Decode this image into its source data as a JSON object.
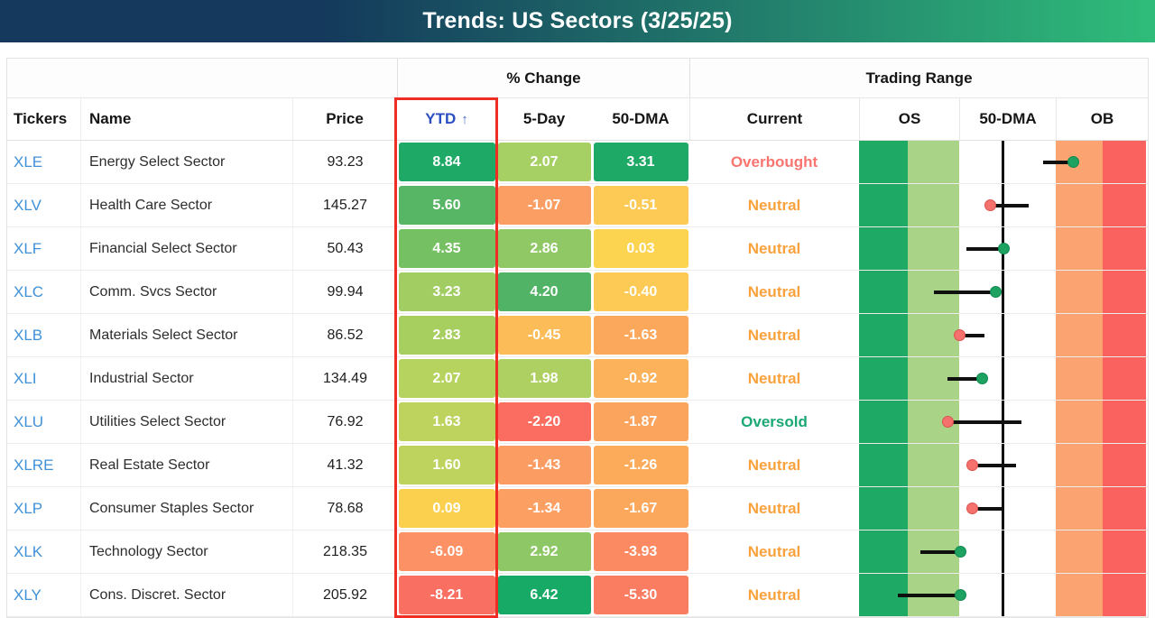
{
  "title": "Trends: US Sectors (3/25/25)",
  "groups": {
    "pct_change": "% Change",
    "trading_range": "Trading Range"
  },
  "columns": {
    "tickers": "Tickers",
    "name": "Name",
    "price": "Price",
    "ytd": "YTD",
    "sort_arrow": "↑",
    "five_day": "5-Day",
    "dma": "50-DMA",
    "current": "Current",
    "os": "OS",
    "range_dma": "50-DMA",
    "ob": "OB"
  },
  "colors": {
    "titlebar_left": "#14395c",
    "titlebar_right": "#2fbc7a",
    "ticker_blue": "#3f90d8",
    "ytd_header_blue": "#2b4fc2",
    "highlight_red": "#ee2e24",
    "midline_black": "#101010",
    "status": {
      "Overbought": "#fa7470",
      "Neutral": "#f9a23c",
      "Oversold": "#1aa874"
    },
    "bands": {
      "os_dark": "#1ea964",
      "os_light": "#a9d488",
      "mid": "#ffffff",
      "ob_orange": "#fca471",
      "ob_red": "#fa625f"
    },
    "dot": {
      "green": "#1da262",
      "green_border": "#0f8a50",
      "red": "#f5716d",
      "red_border": "#db534e"
    }
  },
  "chart_data": {
    "type": "table",
    "title": "Trends: US Sectors (3/25/25)",
    "column_groups": [
      {
        "label": "% Change",
        "spans": [
          "YTD",
          "5-Day",
          "50-DMA"
        ]
      },
      {
        "label": "Trading Range",
        "spans": [
          "Current",
          "OS",
          "50-DMA",
          "OB"
        ]
      }
    ],
    "columns": [
      "Tickers",
      "Name",
      "Price",
      "YTD",
      "5-Day",
      "50-DMA",
      "Current",
      "OS",
      "50-DMA",
      "OB"
    ],
    "sorted_by": "YTD",
    "range_axis_note": "dot = current position in trading range (0 = oversold end, 100 = overbought end), tail = prior position, black midline at 50-DMA",
    "rows": [
      {
        "ticker": "XLE",
        "name": "Energy Select Sector",
        "price": "93.23",
        "ytd": "8.84",
        "ytd_bg": "#1fa967",
        "five_day": "2.07",
        "five_day_bg": "#a6d064",
        "dma": "3.31",
        "dma_bg": "#1fa967",
        "current": "Overbought",
        "range_dot_pct": 74.7,
        "range_tail_pct": 64.3,
        "range_dot_color": "green"
      },
      {
        "ticker": "XLV",
        "name": "Health Care Sector",
        "price": "145.27",
        "ytd": "5.60",
        "ytd_bg": "#57b566",
        "five_day": "-1.07",
        "five_day_bg": "#fb9e63",
        "dma": "-0.51",
        "dma_bg": "#fcca55",
        "current": "Neutral",
        "range_dot_pct": 45.7,
        "range_tail_pct": 59.0,
        "range_dot_color": "red"
      },
      {
        "ticker": "XLF",
        "name": "Financial Select Sector",
        "price": "50.43",
        "ytd": "4.35",
        "ytd_bg": "#75c063",
        "five_day": "2.86",
        "five_day_bg": "#90c865",
        "dma": "0.03",
        "dma_bg": "#fdd44f",
        "current": "Neutral",
        "range_dot_pct": 50.4,
        "range_tail_pct": 37.5,
        "range_dot_color": "green"
      },
      {
        "ticker": "XLC",
        "name": "Comm. Svcs Sector",
        "price": "99.94",
        "ytd": "3.23",
        "ytd_bg": "#a1cd62",
        "five_day": "4.20",
        "five_day_bg": "#50b366",
        "dma": "-0.40",
        "dma_bg": "#fcca55",
        "current": "Neutral",
        "range_dot_pct": 47.7,
        "range_tail_pct": 26.0,
        "range_dot_color": "green"
      },
      {
        "ticker": "XLB",
        "name": "Materials Select Sector",
        "price": "86.52",
        "ytd": "2.83",
        "ytd_bg": "#a7cf60",
        "five_day": "-0.45",
        "five_day_bg": "#fcbd58",
        "dma": "-1.63",
        "dma_bg": "#fba85c",
        "current": "Neutral",
        "range_dot_pct": 35.2,
        "range_tail_pct": 43.8,
        "range_dot_color": "red"
      },
      {
        "ticker": "XLI",
        "name": "Industrial Sector",
        "price": "134.49",
        "ytd": "2.07",
        "ytd_bg": "#b6d35f",
        "five_day": "1.98",
        "five_day_bg": "#aecf61",
        "dma": "-0.92",
        "dma_bg": "#fcb25a",
        "current": "Neutral",
        "range_dot_pct": 43.0,
        "range_tail_pct": 30.7,
        "range_dot_color": "green"
      },
      {
        "ticker": "XLU",
        "name": "Utilities Select Sector",
        "price": "76.92",
        "ytd": "1.63",
        "ytd_bg": "#bdd35e",
        "five_day": "-2.20",
        "five_day_bg": "#fa6d60",
        "dma": "-1.87",
        "dma_bg": "#fba45d",
        "current": "Oversold",
        "range_dot_pct": 30.9,
        "range_tail_pct": 56.7,
        "range_dot_color": "red"
      },
      {
        "ticker": "XLRE",
        "name": "Real Estate Sector",
        "price": "41.32",
        "ytd": "1.60",
        "ytd_bg": "#bed35e",
        "five_day": "-1.43",
        "five_day_bg": "#fb9c63",
        "dma": "-1.26",
        "dma_bg": "#fcab5b",
        "current": "Neutral",
        "range_dot_pct": 39.6,
        "range_tail_pct": 54.8,
        "range_dot_color": "red"
      },
      {
        "ticker": "XLP",
        "name": "Consumer Staples Sector",
        "price": "78.68",
        "ytd": "0.09",
        "ytd_bg": "#fcd04f",
        "five_day": "-1.34",
        "five_day_bg": "#fb9f62",
        "dma": "-1.67",
        "dma_bg": "#fba85c",
        "current": "Neutral",
        "range_dot_pct": 39.6,
        "range_tail_pct": 50.3,
        "range_dot_color": "red"
      },
      {
        "ticker": "XLK",
        "name": "Technology Sector",
        "price": "218.35",
        "ytd": "-6.09",
        "ytd_bg": "#fb9164",
        "five_day": "2.92",
        "five_day_bg": "#8ec765",
        "dma": "-3.93",
        "dma_bg": "#fb8a63",
        "current": "Neutral",
        "range_dot_pct": 35.4,
        "range_tail_pct": 21.3,
        "range_dot_color": "green"
      },
      {
        "ticker": "XLY",
        "name": "Cons. Discret. Sector",
        "price": "205.92",
        "ytd": "-8.21",
        "ytd_bg": "#f96f61",
        "five_day": "6.42",
        "five_day_bg": "#17aa66",
        "dma": "-5.30",
        "dma_bg": "#fa7d62",
        "current": "Neutral",
        "range_dot_pct": 35.4,
        "range_tail_pct": 13.6,
        "range_dot_color": "green"
      }
    ]
  }
}
